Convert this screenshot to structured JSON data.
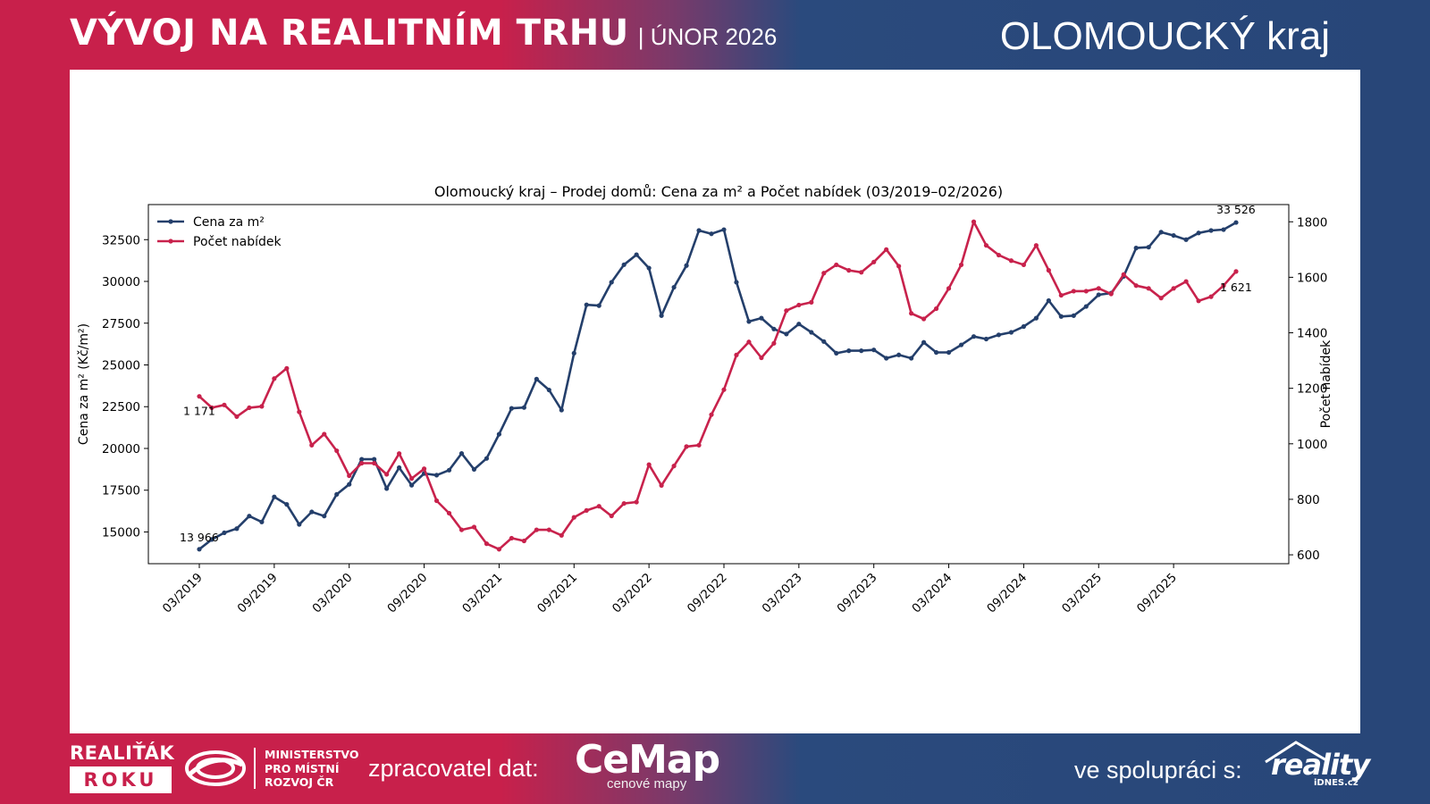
{
  "header": {
    "title": "VÝVOJ NA REALITNÍM TRHU",
    "subtitle": "| ÚNOR 2026",
    "region": "OLOMOUCKÝ kraj"
  },
  "footer": {
    "badge_top": "REALIŤÁK",
    "badge_bottom": "ROKU",
    "ministry": [
      "MINISTERSTVO",
      "PRO MÍSTNÍ",
      "ROZVOJ ČR"
    ],
    "credit_label": "zpracovatel dat:",
    "credit_logo": "CeMap",
    "credit_logo_sub": "cenové mapy",
    "partner_label": "ve spolupráci s:",
    "partner_logo": "reality",
    "partner_logo_sub": "iDNES.cz"
  },
  "colors": {
    "price": "#243f6b",
    "offers": "#c8224c",
    "header_red": "#c8204b",
    "header_blue": "#284678"
  },
  "chart_data": {
    "type": "line",
    "title": "Olomoucký kraj – Prodej domů: Cena za m² a Počet nabídek (03/2019–02/2026)",
    "ylabel": "Cena za m² (Kč/m²)",
    "y2label": "Počet nabídek",
    "ylim": [
      13100,
      34600
    ],
    "y2lim": [
      568,
      1862
    ],
    "yticks": [
      15000,
      17500,
      20000,
      22500,
      25000,
      27500,
      30000,
      32500
    ],
    "y2ticks": [
      600,
      800,
      1000,
      1200,
      1400,
      1600,
      1800
    ],
    "xticks": [
      "03/2019",
      "09/2019",
      "03/2020",
      "09/2020",
      "03/2021",
      "09/2021",
      "03/2022",
      "09/2022",
      "03/2023",
      "09/2023",
      "03/2024",
      "09/2024",
      "03/2025",
      "09/2025"
    ],
    "legend": "top-left",
    "x": [
      "03/2019",
      "04/2019",
      "05/2019",
      "06/2019",
      "07/2019",
      "08/2019",
      "09/2019",
      "10/2019",
      "11/2019",
      "12/2019",
      "01/2020",
      "02/2020",
      "03/2020",
      "04/2020",
      "05/2020",
      "06/2020",
      "07/2020",
      "08/2020",
      "09/2020",
      "10/2020",
      "11/2020",
      "12/2020",
      "01/2021",
      "02/2021",
      "03/2021",
      "04/2021",
      "05/2021",
      "06/2021",
      "07/2021",
      "08/2021",
      "09/2021",
      "10/2021",
      "11/2021",
      "12/2021",
      "01/2022",
      "02/2022",
      "03/2022",
      "04/2022",
      "05/2022",
      "06/2022",
      "07/2022",
      "08/2022",
      "09/2022",
      "10/2022",
      "11/2022",
      "12/2022",
      "01/2023",
      "02/2023",
      "03/2023",
      "04/2023",
      "05/2023",
      "06/2023",
      "07/2023",
      "08/2023",
      "09/2023",
      "10/2023",
      "11/2023",
      "12/2023",
      "01/2024",
      "02/2024",
      "03/2024",
      "04/2024",
      "05/2024",
      "06/2024",
      "07/2024",
      "08/2024",
      "09/2024",
      "10/2024",
      "11/2024",
      "12/2024",
      "01/2025",
      "02/2025",
      "03/2025",
      "04/2025",
      "05/2025",
      "06/2025",
      "07/2025",
      "08/2025",
      "09/2025",
      "10/2025",
      "11/2025",
      "12/2025",
      "01/2026",
      "02/2026"
    ],
    "series": [
      {
        "name": "Cena za m²",
        "axis": "left",
        "start_label": "13 966",
        "end_label": "33 526",
        "values": [
          13966,
          14550,
          14950,
          15200,
          15950,
          15600,
          17100,
          16650,
          15450,
          16200,
          15950,
          17250,
          17850,
          19350,
          19350,
          17600,
          18850,
          17800,
          18500,
          18400,
          18700,
          19700,
          18750,
          19400,
          20850,
          22400,
          22450,
          24150,
          23500,
          22300,
          25700,
          28600,
          28550,
          29950,
          31000,
          31600,
          30800,
          27950,
          29650,
          30950,
          33050,
          32850,
          33100,
          29950,
          27600,
          27800,
          27150,
          26850,
          27450,
          26950,
          26400,
          25700,
          25850,
          25850,
          25900,
          25400,
          25600,
          25400,
          26350,
          25750,
          25750,
          26200,
          26700,
          26550,
          26800,
          26950,
          27300,
          27800,
          28850,
          27900,
          27950,
          28500,
          29200,
          29300,
          30300,
          32000,
          32050,
          32950,
          32750,
          32500,
          32900,
          33050,
          33100,
          33526
        ]
      },
      {
        "name": "Počet nabídek",
        "axis": "right",
        "start_label": "1 171",
        "end_label": "1 621",
        "values": [
          1171,
          1130,
          1140,
          1098,
          1130,
          1135,
          1235,
          1272,
          1115,
          995,
          1035,
          975,
          885,
          930,
          930,
          890,
          965,
          875,
          910,
          795,
          750,
          690,
          700,
          640,
          620,
          660,
          650,
          690,
          690,
          670,
          735,
          760,
          775,
          740,
          785,
          790,
          925,
          850,
          920,
          990,
          995,
          1105,
          1195,
          1320,
          1367,
          1310,
          1362,
          1480,
          1500,
          1510,
          1615,
          1645,
          1625,
          1618,
          1655,
          1700,
          1640,
          1470,
          1450,
          1487,
          1560,
          1645,
          1800,
          1715,
          1680,
          1660,
          1645,
          1715,
          1625,
          1535,
          1550,
          1550,
          1560,
          1540,
          1610,
          1570,
          1560,
          1525,
          1560,
          1585,
          1515,
          1530,
          1570,
          1621
        ]
      }
    ]
  }
}
